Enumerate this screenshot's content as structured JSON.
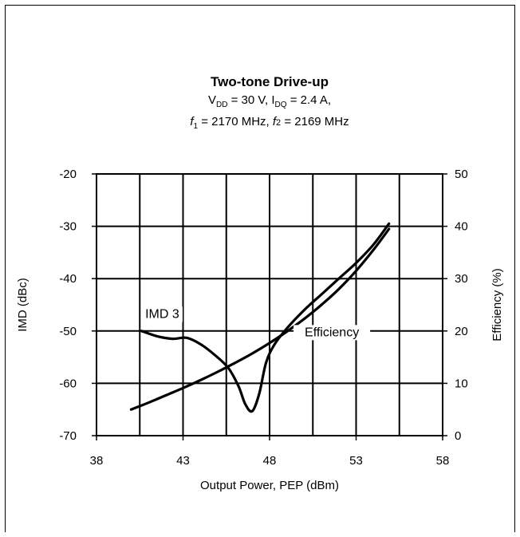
{
  "chart_data": {
    "type": "line",
    "title": "Two-tone Drive-up",
    "subtitle_line1": {
      "v_label": "V",
      "v_sub": "DD",
      "v_value": " = 30 V, ",
      "i_label": "I",
      "i_sub": "DQ",
      "i_value": " = 2.4 A,"
    },
    "subtitle_line2": {
      "f1_label": "f",
      "f1_sub": "1",
      "f1_value": " = 2170 MHz, ",
      "f2_label": "f",
      "f2_sub": "2",
      "f2_value": " = 2169 MHz"
    },
    "xlabel": "Output Power, PEP (dBm)",
    "ylabel_left": "IMD (dBc)",
    "ylabel_right": "Efficiency (%)",
    "xlim": [
      38,
      58
    ],
    "ylim_left": [
      -70,
      -20
    ],
    "ylim_right": [
      0,
      50
    ],
    "x_ticks": [
      "38",
      "43",
      "48",
      "53",
      "58"
    ],
    "y_left_ticks": [
      "-70",
      "-60",
      "-50",
      "-40",
      "-30",
      "-20"
    ],
    "y_right_ticks": [
      "0",
      "10",
      "20",
      "30",
      "40",
      "50"
    ],
    "grid": true,
    "series": [
      {
        "name": "IMD 3",
        "axis": "left",
        "x": [
          40.6,
          41.5,
          42.4,
          43.2,
          44.0,
          44.8,
          45.6,
          46.2,
          46.6,
          47.0,
          47.4,
          47.8,
          48.3,
          49.0,
          50.0,
          51.0,
          52.0,
          53.0,
          54.0,
          54.9
        ],
        "y": [
          -50.0,
          -51.0,
          -51.5,
          -51.3,
          -52.5,
          -54.5,
          -57.0,
          -60.5,
          -64.0,
          -65.3,
          -62.0,
          -56.0,
          -52.5,
          -49.5,
          -46.0,
          -43.0,
          -40.0,
          -37.0,
          -33.5,
          -29.5
        ]
      },
      {
        "name": "Efficiency",
        "axis": "right",
        "x": [
          40.0,
          41.0,
          42.0,
          43.0,
          44.0,
          45.0,
          46.0,
          47.0,
          48.0,
          49.0,
          50.0,
          51.0,
          52.0,
          53.0,
          54.0,
          54.9
        ],
        "y": [
          5.0,
          6.3,
          7.7,
          9.1,
          10.6,
          12.2,
          13.9,
          15.7,
          17.7,
          19.9,
          22.3,
          25.0,
          28.0,
          31.5,
          35.5,
          39.5
        ]
      }
    ],
    "annotations": [
      {
        "text": "IMD 3",
        "x": 41.8,
        "y": -47.5,
        "axis": "left"
      },
      {
        "text": "Efficiency",
        "x": 51.6,
        "y": 19.0,
        "axis": "right"
      }
    ]
  }
}
